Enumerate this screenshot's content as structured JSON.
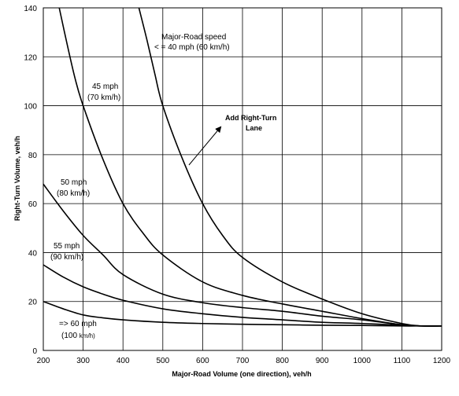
{
  "chart_data": {
    "type": "line",
    "xlabel": "Major-Road Volume (one direction), veh/h",
    "ylabel": "Right-Turn Volume, veh/h",
    "xlim": [
      200,
      1200
    ],
    "ylim": [
      0,
      140
    ],
    "xticks": [
      200,
      300,
      400,
      500,
      600,
      700,
      800,
      900,
      1000,
      1100,
      1200
    ],
    "yticks": [
      0,
      20,
      40,
      60,
      80,
      100,
      120,
      140
    ],
    "grid": true,
    "series": [
      {
        "name": "<= 40 mph (60 km/h)",
        "x": [
          440,
          460,
          480,
          500,
          550,
          600,
          650,
          700,
          800,
          900,
          1000,
          1100,
          1150,
          1200
        ],
        "y": [
          140,
          127,
          113,
          100,
          78,
          60,
          47,
          38,
          28,
          21,
          15,
          11,
          10,
          10
        ]
      },
      {
        "name": "45 mph (70 km/h)",
        "x": [
          240,
          260,
          280,
          300,
          350,
          400,
          450,
          500,
          600,
          700,
          800,
          900,
          1000,
          1100,
          1150,
          1200
        ],
        "y": [
          140,
          125,
          111,
          100,
          78,
          60,
          48,
          39,
          28,
          22.5,
          19,
          16,
          13,
          10.5,
          10,
          10
        ]
      },
      {
        "name": "50 mph (80 km/h)",
        "x": [
          200,
          250,
          300,
          350,
          400,
          500,
          600,
          700,
          800,
          900,
          1000,
          1100,
          1150,
          1200
        ],
        "y": [
          68,
          57,
          47,
          39,
          31,
          23,
          19.5,
          17.5,
          16,
          14,
          12.5,
          10.5,
          10,
          10
        ]
      },
      {
        "name": "55 mph (90 km/h)",
        "x": [
          200,
          250,
          300,
          350,
          400,
          500,
          600,
          700,
          800,
          900,
          1000,
          1100,
          1150,
          1200
        ],
        "y": [
          35,
          30,
          26,
          23,
          20.5,
          17,
          15,
          13.5,
          12.5,
          11.5,
          11,
          10.3,
          10,
          10
        ]
      },
      {
        "name": "=> 60 mph (100 km/h)",
        "x": [
          200,
          250,
          300,
          350,
          400,
          500,
          600,
          700,
          800,
          900,
          1000,
          1100,
          1150,
          1200
        ],
        "y": [
          20,
          17,
          14.5,
          13.3,
          12.5,
          11.5,
          11,
          10.7,
          10.5,
          10.3,
          10.2,
          10,
          10,
          10
        ]
      }
    ],
    "annotations": {
      "speed_header": "Major-Road speed",
      "label_40_line1": "< = 40 mph (60 km/h)",
      "label_45_line1": "45 mph",
      "label_45_line2": "(70 km/h)",
      "label_50_line1": "50 mph",
      "label_50_line2": "(80 km/h)",
      "label_55_line1": "55 mph",
      "label_55_line2": "(90 km/h)",
      "label_60_line1": "=> 60 mph",
      "label_60_line2_a": "(100 ",
      "label_60_line2_b": "km/h)",
      "arrow_line1": "Add Right-Turn",
      "arrow_line2": "Lane"
    }
  }
}
